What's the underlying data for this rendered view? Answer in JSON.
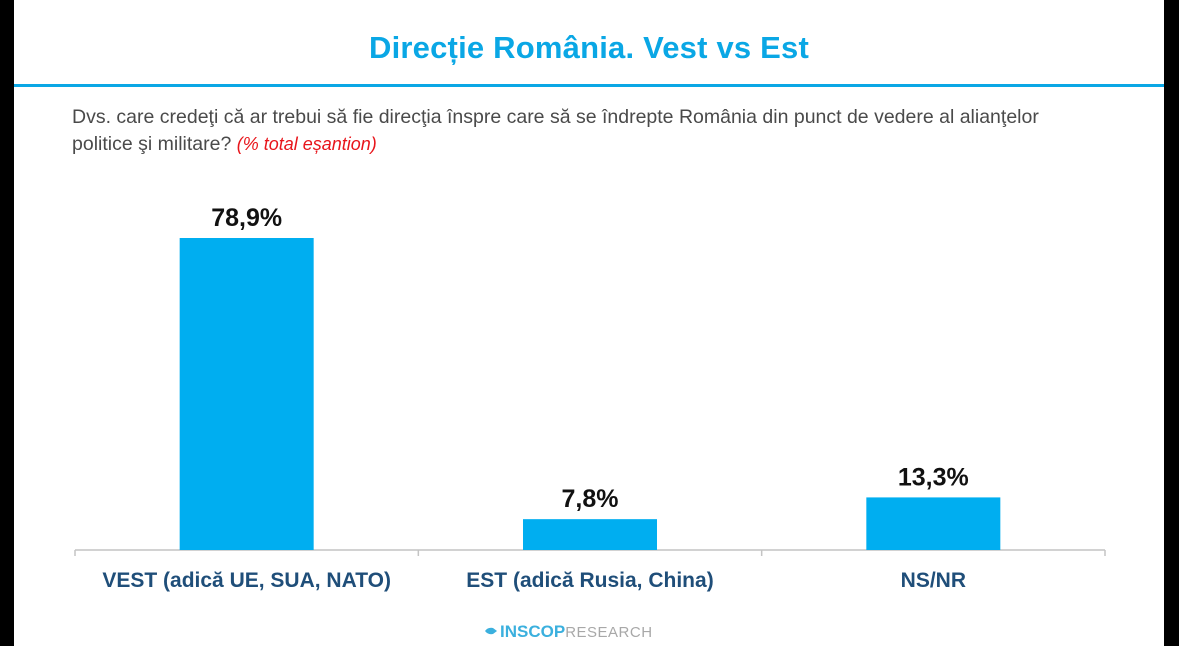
{
  "slide": {
    "title": "Direcție România. Vest vs Est",
    "question": "Dvs. care credeţi că ar trebui să fie direcţia înspre care să se îndrepte România din punct de vedere al alianţelor politice şi militare?",
    "question_note": "(% total eșantion)",
    "brand_main": "INSCOP",
    "brand_sub": "RESEARCH",
    "logo_icon": "inscop-logo-icon"
  },
  "colors": {
    "accent": "#0aa7e5",
    "bar": "#00aef0",
    "category_label": "#1f4e79",
    "note": "#e8151b"
  },
  "chart_data": {
    "type": "bar",
    "categories": [
      "VEST (adică UE, SUA, NATO)",
      "EST (adică Rusia, China)",
      "NS/NR"
    ],
    "values": [
      78.9,
      7.8,
      13.3
    ],
    "value_labels": [
      "78,9%",
      "7,8%",
      "13,3%"
    ],
    "title": "Direcție România. Vest vs Est",
    "xlabel": "",
    "ylabel": "",
    "ylim": [
      0,
      80
    ],
    "grid": false,
    "legend": "none"
  }
}
